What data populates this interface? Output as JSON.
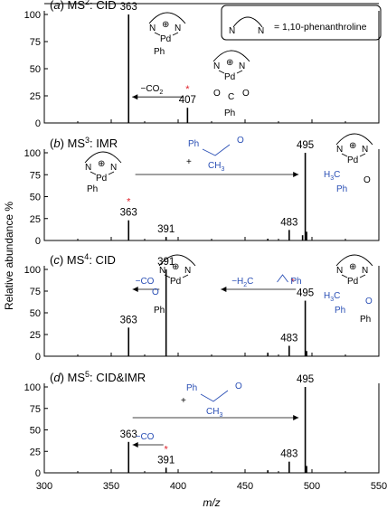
{
  "legend_box": {
    "label": "= 1,10-phenanthroline",
    "ring_atoms": [
      "N",
      "N"
    ]
  },
  "chart_data": {
    "type": "bar",
    "x_axis": {
      "label": "m/z",
      "range": [
        300,
        550
      ],
      "ticks": [
        "300",
        "350",
        "400",
        "450",
        "500",
        "550"
      ]
    },
    "y_axis": {
      "label": "Relative abundance %",
      "range": [
        0,
        100
      ],
      "ticks": [
        "0",
        "25",
        "50",
        "75",
        "100"
      ]
    },
    "panels": [
      {
        "id": "a",
        "label": {
          "prefix": "(",
          "letter": "a",
          "suffix": ") ",
          "stage": "MS",
          "power": "2",
          "method": ": CID"
        },
        "peaks": [
          {
            "mz": 363,
            "intensity": 100,
            "label": "363"
          },
          {
            "mz": 407,
            "intensity": 14,
            "label": "407",
            "marked": true
          }
        ],
        "annotations": {
          "arrow_text": "−CO",
          "arrow_sub": "2",
          "star": "*"
        },
        "structures": {
          "left": {
            "atoms": [
              "N",
              "⊕",
              "N",
              "Pd",
              "Ph"
            ]
          },
          "right": {
            "atoms": [
              "N",
              "⊕",
              "N",
              "Pd",
              "O",
              "C",
              "O",
              "Ph"
            ]
          }
        }
      },
      {
        "id": "b",
        "label": {
          "prefix": "(",
          "letter": "b",
          "suffix": ") ",
          "stage": "MS",
          "power": "3",
          "method": ": IMR"
        },
        "peaks": [
          {
            "mz": 363,
            "intensity": 23,
            "label": "363",
            "marked": true
          },
          {
            "mz": 391,
            "intensity": 4,
            "label": "391"
          },
          {
            "mz": 467,
            "intensity": 2
          },
          {
            "mz": 483,
            "intensity": 12,
            "label": "483"
          },
          {
            "mz": 493,
            "intensity": 6
          },
          {
            "mz": 495,
            "intensity": 100,
            "label": "495"
          },
          {
            "mz": 496,
            "intensity": 10
          }
        ],
        "annotations": {
          "plus": "+",
          "star": "*"
        },
        "structures": {
          "left": {
            "atoms": [
              "N",
              "⊕",
              "N",
              "Pd",
              "Ph"
            ]
          },
          "reagent": {
            "atoms": [
              "Ph",
              "CH",
              "3",
              "O"
            ]
          },
          "right": {
            "atoms": [
              "N",
              "⊕",
              "N",
              "Pd",
              "H",
              "3",
              "C",
              "Ph",
              "O"
            ]
          }
        }
      },
      {
        "id": "c",
        "label": {
          "prefix": "(",
          "letter": "c",
          "suffix": ") ",
          "stage": "MS",
          "power": "4",
          "method": ": CID"
        },
        "peaks": [
          {
            "mz": 363,
            "intensity": 33,
            "label": "363"
          },
          {
            "mz": 391,
            "intensity": 100,
            "label": "391"
          },
          {
            "mz": 467,
            "intensity": 4
          },
          {
            "mz": 483,
            "intensity": 12,
            "label": "483"
          },
          {
            "mz": 495,
            "intensity": 64,
            "label": "495",
            "marked": true
          },
          {
            "mz": 496,
            "intensity": 6
          }
        ],
        "annotations": {
          "arrow1_text": "−CO",
          "arrow2_text": "−H",
          "arrow2_sub": "2",
          "arrow2_suffix": "C",
          "arrow2_tail": "Ph",
          "star": "*"
        },
        "structures": {
          "middle": {
            "atoms": [
              "N",
              "⊕",
              "N",
              "Pd",
              "O",
              "Ph"
            ]
          },
          "right": {
            "atoms": [
              "N",
              "⊕",
              "N",
              "Pd",
              "H",
              "3",
              "C",
              "Ph",
              "O",
              "Ph"
            ]
          }
        }
      },
      {
        "id": "d",
        "label": {
          "prefix": "(",
          "letter": "d",
          "suffix": ") ",
          "stage": "MS",
          "power": "5",
          "method": ": CID&IMR"
        },
        "peaks": [
          {
            "mz": 363,
            "intensity": 36,
            "label": "363"
          },
          {
            "mz": 391,
            "intensity": 6,
            "label": "391",
            "marked": true
          },
          {
            "mz": 467,
            "intensity": 3
          },
          {
            "mz": 483,
            "intensity": 13,
            "label": "483"
          },
          {
            "mz": 495,
            "intensity": 100,
            "label": "495"
          },
          {
            "mz": 496,
            "intensity": 8
          }
        ],
        "annotations": {
          "arrow_text": "−CO",
          "plus": "+",
          "star": "*"
        },
        "structures": {
          "reagent": {
            "atoms": [
              "Ph",
              "CH",
              "3",
              "O"
            ]
          }
        }
      }
    ],
    "colors": {
      "structure_highlight": "#2a4fb5",
      "marker": "#e0202a",
      "peaks": "#000000"
    }
  }
}
